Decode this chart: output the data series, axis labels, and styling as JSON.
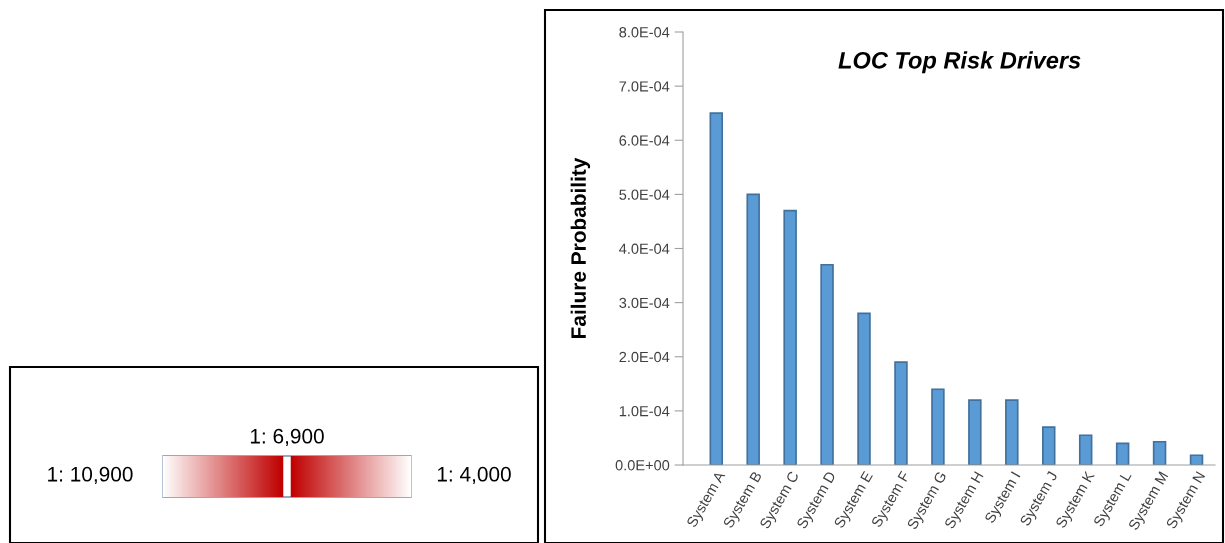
{
  "chart_data": [
    {
      "type": "bar",
      "title": "LOC Top Risk Drivers",
      "ylabel": "Failure Probability",
      "categories": [
        "System A",
        "System B",
        "System C",
        "System D",
        "System E",
        "System F",
        "System G",
        "System H",
        "System I",
        "System J",
        "System K",
        "System L",
        "System M",
        "System N"
      ],
      "values": [
        0.00065,
        0.0005,
        0.00047,
        0.00037,
        0.00028,
        0.00019,
        0.00014,
        0.00012,
        0.00012,
        7e-05,
        5.5e-05,
        4e-05,
        4.3e-05,
        1.8e-05
      ],
      "color": "#5b9bd5",
      "ylim": [
        0,
        0.0008
      ],
      "yticks": [
        {
          "value": 0,
          "label": "0.0E+00"
        },
        {
          "value": 0.0001,
          "label": "1.0E-04"
        },
        {
          "value": 0.0002,
          "label": "2.0E-04"
        },
        {
          "value": 0.0003,
          "label": "3.0E-04"
        },
        {
          "value": 0.0004,
          "label": "4.0E-04"
        },
        {
          "value": 0.0005,
          "label": "5.0E-04"
        },
        {
          "value": 0.0006,
          "label": "6.0E-04"
        },
        {
          "value": 0.0007,
          "label": "7.0E-04"
        },
        {
          "value": 0.0008,
          "label": "8.0E-04"
        }
      ],
      "grid": false,
      "legend": false
    },
    {
      "type": "other",
      "annotations": [
        "1: 10,900",
        "1: 6,900",
        "1: 4,000"
      ]
    }
  ]
}
